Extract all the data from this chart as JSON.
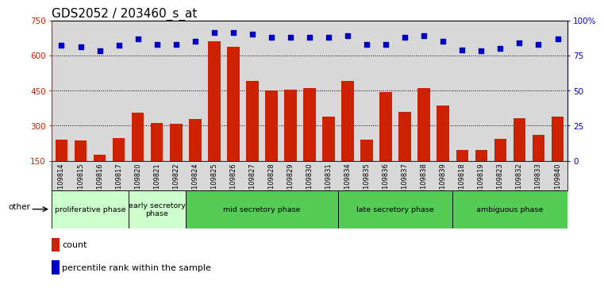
{
  "title": "GDS2052 / 203460_s_at",
  "samples": [
    "GSM109814",
    "GSM109815",
    "GSM109816",
    "GSM109817",
    "GSM109820",
    "GSM109821",
    "GSM109822",
    "GSM109824",
    "GSM109825",
    "GSM109826",
    "GSM109827",
    "GSM109828",
    "GSM109829",
    "GSM109830",
    "GSM109831",
    "GSM109834",
    "GSM109835",
    "GSM109836",
    "GSM109837",
    "GSM109838",
    "GSM109839",
    "GSM109818",
    "GSM109819",
    "GSM109823",
    "GSM109832",
    "GSM109833",
    "GSM109840"
  ],
  "counts": [
    240,
    238,
    175,
    248,
    355,
    310,
    308,
    328,
    660,
    635,
    490,
    450,
    455,
    460,
    340,
    490,
    240,
    445,
    360,
    460,
    385,
    195,
    195,
    245,
    330,
    262,
    340
  ],
  "percentile_ranks": [
    82,
    81,
    78,
    82,
    87,
    83,
    83,
    85,
    91,
    91,
    90,
    88,
    88,
    88,
    88,
    89,
    83,
    83,
    88,
    89,
    85,
    79,
    78,
    80,
    84,
    83,
    87
  ],
  "phases": [
    {
      "label": "proliferative phase",
      "color": "#ccffcc",
      "start": 0,
      "end": 4
    },
    {
      "label": "early secretory\nphase",
      "color": "#ccffcc",
      "start": 4,
      "end": 7
    },
    {
      "label": "mid secretory phase",
      "color": "#55cc55",
      "start": 7,
      "end": 15
    },
    {
      "label": "late secretory phase",
      "color": "#55cc55",
      "start": 15,
      "end": 21
    },
    {
      "label": "ambiguous phase",
      "color": "#55cc55",
      "start": 21,
      "end": 27
    }
  ],
  "bar_color": "#cc2200",
  "dot_color": "#0000cc",
  "ylim_left": [
    150,
    750
  ],
  "ylim_right": [
    0,
    100
  ],
  "yticks_left": [
    150,
    300,
    450,
    600,
    750
  ],
  "yticks_right": [
    0,
    25,
    50,
    75,
    100
  ],
  "ax_bg_color": "#d8d8d8",
  "title_fontsize": 11
}
